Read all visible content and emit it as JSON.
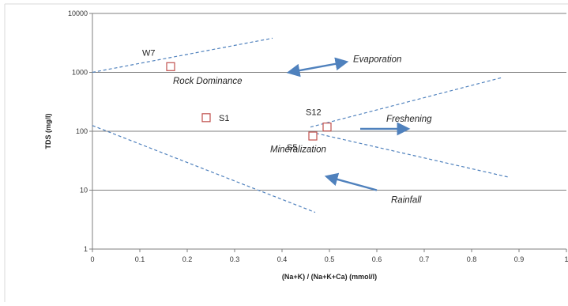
{
  "chart_data": {
    "type": "scatter",
    "title": "",
    "xlabel": "(Na+K) / (Na+K+Ca) (mmol/l)",
    "ylabel": "TDS (mg/l)",
    "xlim": [
      0,
      1
    ],
    "ylim": [
      1,
      10000
    ],
    "y_scale": "log",
    "grid": "horizontal",
    "x_ticks": [
      "0",
      "0.1",
      "0.2",
      "0.3",
      "0.4",
      "0.5",
      "0.6",
      "0.7",
      "0.8",
      "0.9",
      "1"
    ],
    "y_ticks": [
      "1",
      "10",
      "100",
      "1000",
      "10000"
    ],
    "series": [
      {
        "marker": "open-square",
        "color": "#c0504d",
        "points": [
          {
            "label": "W7",
            "x": 0.165,
            "y": 1250
          },
          {
            "label": "S1",
            "x": 0.24,
            "y": 170
          },
          {
            "label": "S12",
            "x": 0.495,
            "y": 118
          },
          {
            "label": "S5",
            "x": 0.465,
            "y": 83
          }
        ]
      }
    ],
    "guide_lines": [
      {
        "style": "dashed",
        "color": "#4f81bd",
        "from": [
          0,
          1000
        ],
        "to": [
          0.38,
          3800
        ]
      },
      {
        "style": "dashed",
        "color": "#4f81bd",
        "from": [
          0,
          125
        ],
        "to": [
          0.47,
          4.2
        ]
      },
      {
        "style": "dashed",
        "color": "#4f81bd",
        "from": [
          0.46,
          118
        ],
        "to": [
          0.865,
          820
        ]
      },
      {
        "style": "dashed",
        "color": "#4f81bd",
        "from": [
          0.46,
          97
        ],
        "to": [
          0.88,
          16.5
        ]
      }
    ],
    "annotations": [
      {
        "text": "Evaporation",
        "x": 0.55,
        "y": 1500
      },
      {
        "text": "Rock Dominance",
        "x": 0.17,
        "y": 640
      },
      {
        "text": "Freshening",
        "x": 0.62,
        "y": 145
      },
      {
        "text": "Mineralization",
        "x": 0.375,
        "y": 44
      },
      {
        "text": "Rainfall",
        "x": 0.63,
        "y": 6.1
      }
    ],
    "arrows": [
      {
        "color": "#4f81bd",
        "style": "double",
        "from": [
          0.415,
          1000
        ],
        "to": [
          0.535,
          1500
        ]
      },
      {
        "color": "#4f81bd",
        "style": "single",
        "from": [
          0.565,
          110
        ],
        "to": [
          0.665,
          110
        ]
      },
      {
        "color": "#4f81bd",
        "style": "single",
        "from": [
          0.6,
          10
        ],
        "to": [
          0.495,
          17
        ]
      }
    ]
  }
}
